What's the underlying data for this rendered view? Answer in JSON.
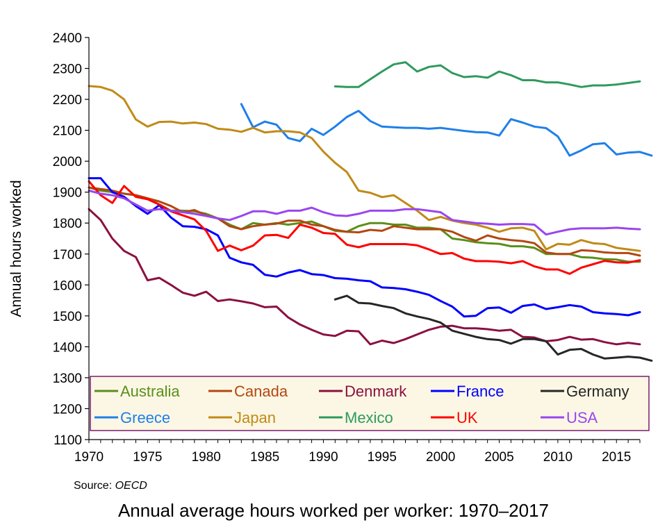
{
  "chart_data": {
    "type": "line",
    "title": "",
    "ylabel": "Annual hours worked",
    "xlabel": "",
    "xlim": [
      1970,
      2017
    ],
    "ylim": [
      1100,
      2400
    ],
    "x_ticks": [
      "1970",
      "1975",
      "1980",
      "1985",
      "1990",
      "1995",
      "2000",
      "2005",
      "2010",
      "2015"
    ],
    "y_ticks": [
      "1100",
      "1200",
      "1300",
      "1400",
      "1500",
      "1600",
      "1700",
      "1800",
      "1900",
      "2000",
      "2100",
      "2200",
      "2300",
      "2400"
    ],
    "grid": false,
    "legend_placement": "bottom, inside plot",
    "legend_background": "#fbf7e4",
    "legend_border": "#7b1b6e",
    "source_label": "Source: ",
    "source_name": "OECD",
    "caption": "Annual average hours worked per worker: 1970–2017",
    "series": [
      {
        "name": "Australia",
        "color": "#5a8f1a",
        "start": 1970,
        "values": [
          1915,
          1905,
          1900,
          1895,
          1890,
          1880,
          1860,
          1840,
          1840,
          1838,
          1830,
          1815,
          1795,
          1780,
          1800,
          1795,
          1800,
          1795,
          1800,
          1805,
          1790,
          1775,
          1772,
          1790,
          1800,
          1800,
          1795,
          1795,
          1785,
          1785,
          1780,
          1750,
          1745,
          1738,
          1735,
          1733,
          1725,
          1725,
          1720,
          1700,
          1700,
          1700,
          1690,
          1688,
          1683,
          1682,
          1675,
          1675
        ]
      },
      {
        "name": "Canada",
        "color": "#b34711",
        "start": 1970,
        "values": [
          1915,
          1910,
          1905,
          1895,
          1890,
          1880,
          1870,
          1855,
          1835,
          1842,
          1825,
          1815,
          1790,
          1780,
          1790,
          1795,
          1798,
          1808,
          1808,
          1795,
          1790,
          1778,
          1772,
          1770,
          1778,
          1775,
          1790,
          1785,
          1780,
          1780,
          1780,
          1772,
          1755,
          1743,
          1760,
          1750,
          1745,
          1742,
          1735,
          1705,
          1700,
          1700,
          1712,
          1710,
          1705,
          1703,
          1703,
          1695
        ]
      },
      {
        "name": "Denmark",
        "color": "#8b1040",
        "start": 1970,
        "values": [
          1845,
          1810,
          1750,
          1710,
          1690,
          1615,
          1623,
          1600,
          1575,
          1565,
          1578,
          1548,
          1553,
          1547,
          1540,
          1528,
          1530,
          1495,
          1472,
          1455,
          1440,
          1435,
          1452,
          1450,
          1408,
          1420,
          1412,
          1425,
          1440,
          1455,
          1465,
          1468,
          1460,
          1460,
          1457,
          1452,
          1455,
          1432,
          1430,
          1418,
          1422,
          1432,
          1423,
          1425,
          1415,
          1408,
          1413,
          1408
        ]
      },
      {
        "name": "France",
        "color": "#0000ff",
        "start": 1970,
        "values": [
          1945,
          1945,
          1900,
          1885,
          1855,
          1830,
          1858,
          1818,
          1790,
          1788,
          1780,
          1760,
          1688,
          1673,
          1665,
          1633,
          1627,
          1640,
          1648,
          1635,
          1632,
          1622,
          1620,
          1615,
          1612,
          1592,
          1590,
          1586,
          1578,
          1568,
          1548,
          1530,
          1498,
          1500,
          1525,
          1527,
          1510,
          1532,
          1537,
          1522,
          1528,
          1535,
          1530,
          1512,
          1508,
          1506,
          1502,
          1512
        ]
      },
      {
        "name": "Germany",
        "color": "#262626",
        "start": 1991,
        "values": [
          1553,
          1565,
          1542,
          1540,
          1532,
          1525,
          1508,
          1498,
          1490,
          1478,
          1452,
          1442,
          1432,
          1425,
          1422,
          1410,
          1425,
          1425,
          1418,
          1375,
          1390,
          1393,
          1375,
          1362,
          1365,
          1368,
          1365,
          1355
        ]
      },
      {
        "name": "Greece",
        "color": "#1f7fe8",
        "start": 1983,
        "values": [
          2185,
          2110,
          2128,
          2118,
          2075,
          2065,
          2105,
          2085,
          2112,
          2143,
          2163,
          2130,
          2112,
          2110,
          2108,
          2108,
          2105,
          2108,
          2103,
          2098,
          2094,
          2093,
          2083,
          2136,
          2125,
          2112,
          2107,
          2080,
          2018,
          2035,
          2055,
          2058,
          2022,
          2028,
          2030,
          2018
        ]
      },
      {
        "name": "Japan",
        "color": "#c08a17",
        "start": 1970,
        "values": [
          2243,
          2240,
          2228,
          2200,
          2135,
          2112,
          2127,
          2128,
          2122,
          2125,
          2120,
          2105,
          2102,
          2095,
          2108,
          2093,
          2097,
          2097,
          2093,
          2075,
          2031,
          1995,
          1965,
          1905,
          1898,
          1884,
          1890,
          1865,
          1840,
          1810,
          1820,
          1808,
          1800,
          1795,
          1785,
          1772,
          1783,
          1785,
          1775,
          1715,
          1733,
          1730,
          1745,
          1735,
          1732,
          1720,
          1715,
          1710
        ]
      },
      {
        "name": "Mexico",
        "color": "#2e9a5e",
        "start": 1991,
        "values": [
          2242,
          2240,
          2240,
          2265,
          2290,
          2313,
          2320,
          2290,
          2305,
          2310,
          2285,
          2272,
          2275,
          2270,
          2290,
          2278,
          2262,
          2262,
          2255,
          2255,
          2248,
          2240,
          2245,
          2245,
          2248,
          2253,
          2258
        ]
      },
      {
        "name": "UK",
        "color": "#ff0000",
        "start": 1970,
        "values": [
          1935,
          1890,
          1865,
          1920,
          1885,
          1877,
          1860,
          1838,
          1825,
          1812,
          1775,
          1710,
          1727,
          1712,
          1727,
          1760,
          1762,
          1752,
          1795,
          1785,
          1768,
          1765,
          1730,
          1722,
          1732,
          1732,
          1732,
          1732,
          1728,
          1715,
          1700,
          1703,
          1685,
          1677,
          1677,
          1675,
          1670,
          1677,
          1660,
          1650,
          1650,
          1636,
          1656,
          1667,
          1678,
          1673,
          1672,
          1680
        ]
      },
      {
        "name": "USA",
        "color": "#9a45f0",
        "start": 1970,
        "values": [
          1905,
          1895,
          1890,
          1880,
          1860,
          1840,
          1845,
          1840,
          1835,
          1830,
          1823,
          1815,
          1810,
          1823,
          1838,
          1838,
          1830,
          1840,
          1840,
          1850,
          1835,
          1825,
          1823,
          1830,
          1840,
          1840,
          1840,
          1845,
          1845,
          1840,
          1835,
          1810,
          1805,
          1800,
          1798,
          1795,
          1797,
          1797,
          1795,
          1763,
          1772,
          1780,
          1783,
          1783,
          1783,
          1785,
          1782,
          1780
        ]
      }
    ]
  }
}
